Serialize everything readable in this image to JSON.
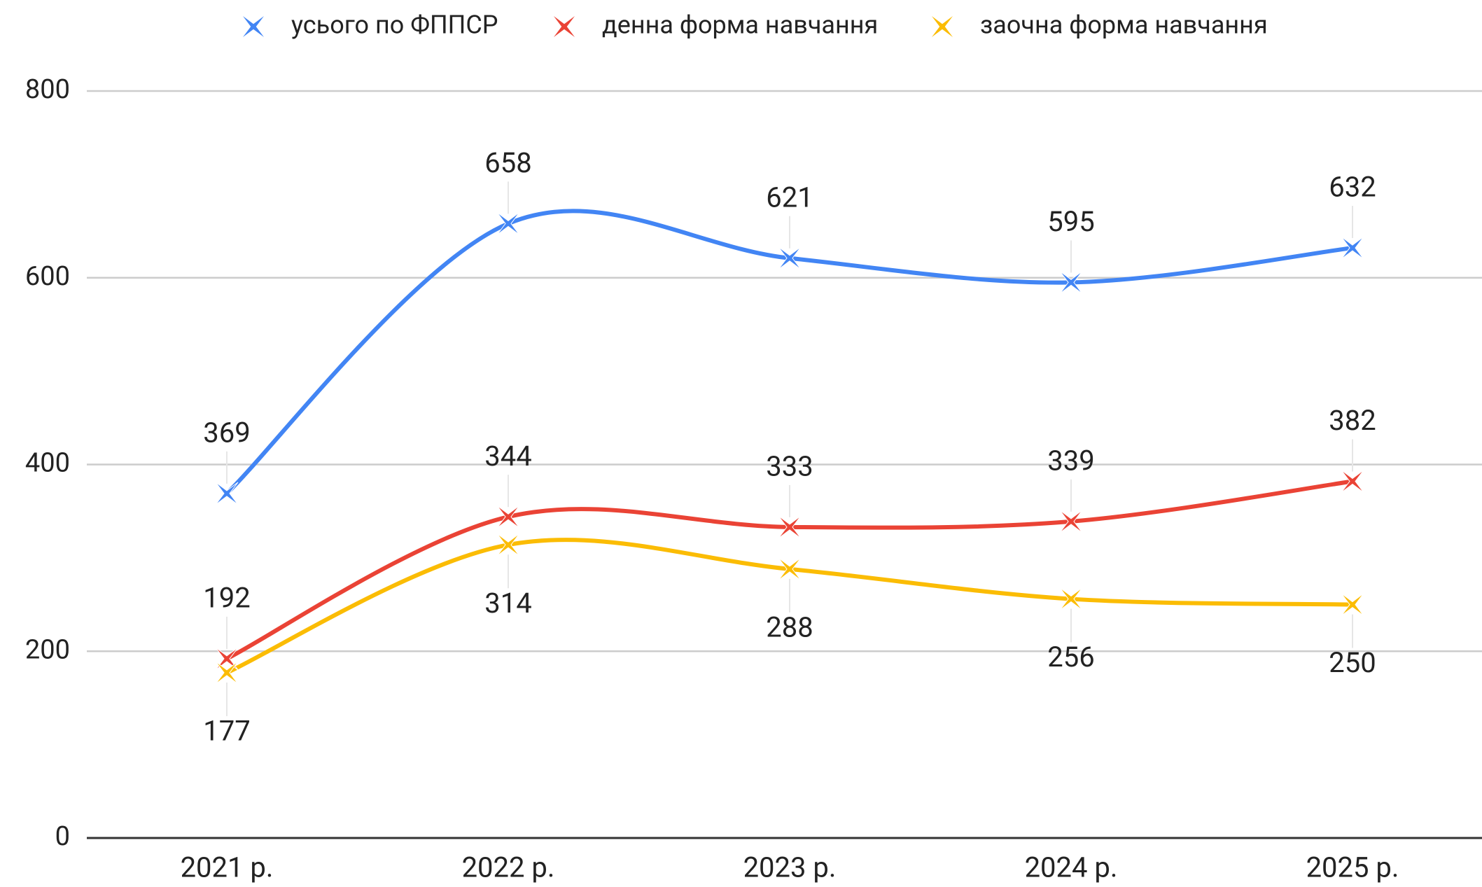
{
  "chart_data": {
    "type": "line",
    "categories": [
      "2021 р.",
      "2022 р.",
      "2023 р.",
      "2024 р.",
      "2025 р."
    ],
    "series": [
      {
        "name": "усього по ФППСР",
        "color": "#4285f4",
        "values": [
          369,
          658,
          621,
          595,
          632
        ]
      },
      {
        "name": "денна форма навчання",
        "color": "#ea4335",
        "values": [
          192,
          344,
          333,
          339,
          382
        ]
      },
      {
        "name": "заочна форма навчання",
        "color": "#fbbc04",
        "values": [
          177,
          314,
          288,
          256,
          250
        ]
      }
    ],
    "ylim": [
      0,
      800
    ],
    "yticks": [
      0,
      200,
      400,
      600,
      800
    ],
    "grid": true,
    "legend": "top",
    "smooth": true
  }
}
